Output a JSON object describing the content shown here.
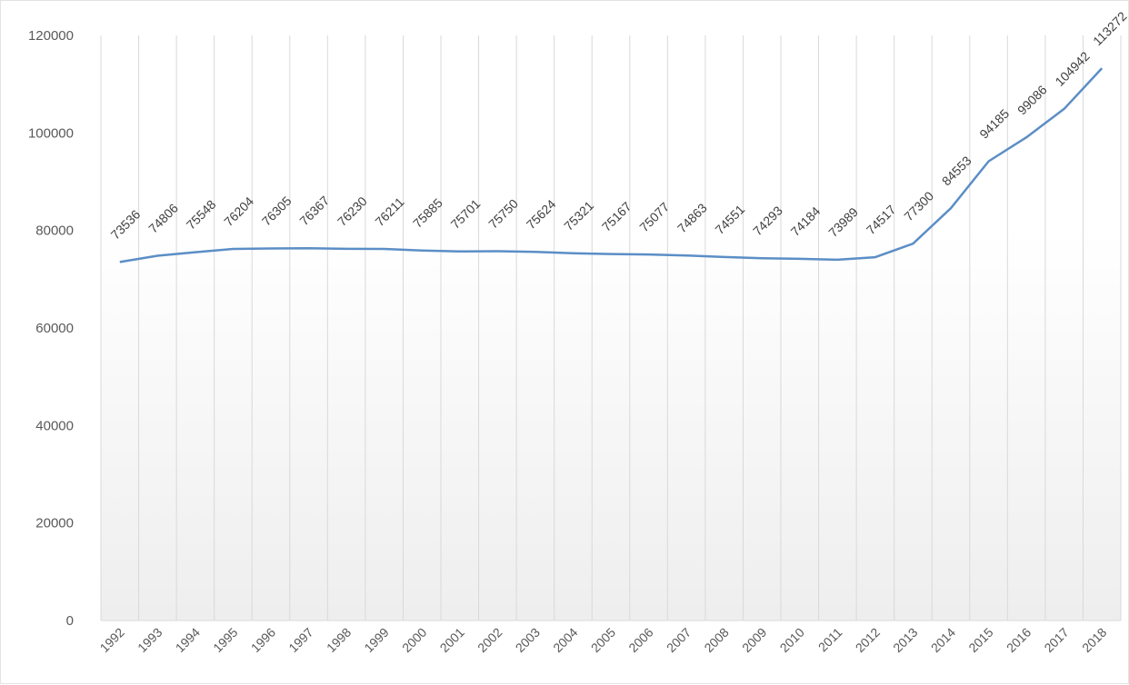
{
  "chart_data": {
    "type": "line",
    "title": "",
    "xlabel": "",
    "ylabel": "",
    "categories": [
      "1992",
      "1993",
      "1994",
      "1995",
      "1996",
      "1997",
      "1998",
      "1999",
      "2000",
      "2001",
      "2002",
      "2003",
      "2004",
      "2005",
      "2006",
      "2007",
      "2008",
      "2009",
      "2010",
      "2011",
      "2012",
      "2013",
      "2014",
      "2015",
      "2016",
      "2017",
      "2018"
    ],
    "series": [
      {
        "values": [
          73536,
          74806,
          75548,
          76204,
          76305,
          76367,
          76230,
          76211,
          75885,
          75701,
          75750,
          75624,
          75321,
          75167,
          75077,
          74863,
          74551,
          74293,
          74184,
          73989,
          74517,
          77300,
          84553,
          94185,
          99086,
          104942,
          113272
        ],
        "color": "#5b8ec6"
      }
    ],
    "ylim": [
      0,
      120000
    ],
    "y_ticks": [
      "0",
      "20000",
      "40000",
      "60000",
      "80000",
      "100000",
      "120000"
    ],
    "grid": "vertical",
    "data_labels": true,
    "legend": "none"
  }
}
